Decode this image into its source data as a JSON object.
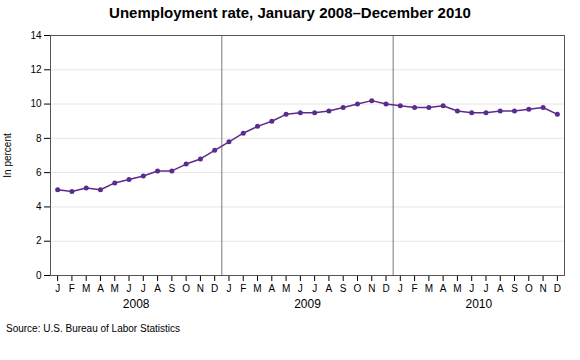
{
  "chart_data": {
    "type": "line",
    "title": "Unemployment rate, January 2008–December 2010",
    "ylabel": "In percent",
    "source": "Source: U.S. Bureau of Labor Statistics",
    "categories": [
      "J",
      "F",
      "M",
      "A",
      "M",
      "J",
      "J",
      "A",
      "S",
      "O",
      "N",
      "D",
      "J",
      "F",
      "M",
      "A",
      "M",
      "J",
      "J",
      "A",
      "S",
      "O",
      "N",
      "D",
      "J",
      "F",
      "M",
      "A",
      "M",
      "J",
      "J",
      "A",
      "S",
      "O",
      "N",
      "D"
    ],
    "values": [
      5.0,
      4.9,
      5.1,
      5.0,
      5.4,
      5.6,
      5.8,
      6.1,
      6.1,
      6.5,
      6.8,
      7.3,
      7.8,
      8.3,
      8.7,
      9.0,
      9.4,
      9.5,
      9.5,
      9.6,
      9.8,
      10.0,
      10.2,
      10.0,
      9.9,
      9.8,
      9.8,
      9.9,
      9.6,
      9.5,
      9.5,
      9.6,
      9.6,
      9.7,
      9.8,
      9.4
    ],
    "color": "#5b2c8d",
    "marker": "circle",
    "ylim": [
      0,
      14
    ],
    "yticks": [
      0,
      2,
      4,
      6,
      8,
      10,
      12,
      14
    ],
    "grid": true,
    "annotations": [
      "2008",
      "2009",
      "2010"
    ]
  }
}
